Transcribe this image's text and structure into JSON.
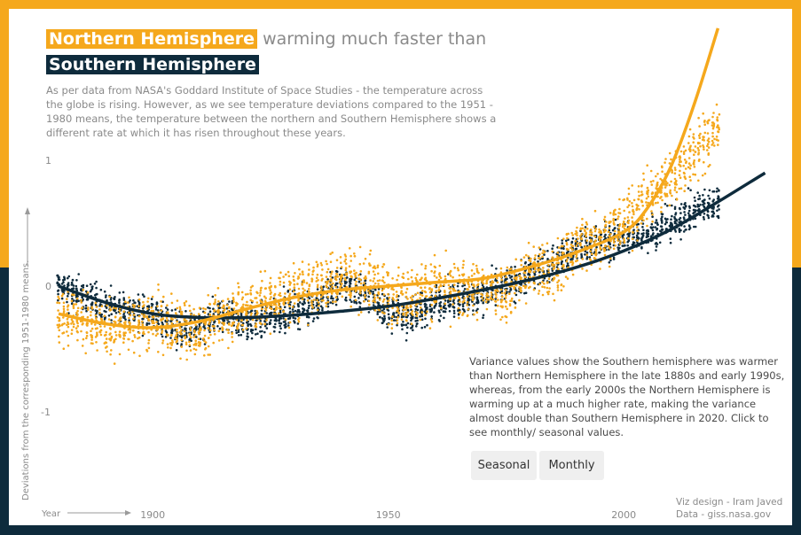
{
  "colors": {
    "north": "#F5A81C",
    "south": "#0E2B3C"
  },
  "title": {
    "north_label": "Northern Hemisphere",
    "rest": "warming much faster than",
    "south_label": "Southern Hemisphere"
  },
  "description": "As per data from NASA's Goddard Institute of Space Studies - the temperature across the globe is rising. However, as we see temperature deviations compared to the 1951 - 1980 means, the temperature between the northern and Southern Hemisphere shows a different rate at which it has risen throughout these years.",
  "annotation": "Variance values show the Southern hemisphere was warmer than Northern Hemisphere in the late 1880s and early 1990s, whereas, from the early 2000s the Northern Hemisphere is warming up at a much higher rate, making the variance almost double than Southern Hemisphere in 2020. Click to see monthly/ seasonal values.",
  "buttons": {
    "seasonal": "Seasonal",
    "monthly": "Monthly"
  },
  "credits": {
    "design": "Viz design - Iram Javed",
    "data": "Data - giss.nasa.gov"
  },
  "chart_data": {
    "type": "scatter",
    "ylabel": "Deviations from the corresponding 1951-1980 means.",
    "xlabel": "Year",
    "x_ticks": [
      "1900",
      "1950",
      "2000"
    ],
    "y_ticks": [
      "1",
      "0",
      "-1"
    ],
    "xlim": [
      1880,
      2020
    ],
    "ylim": [
      -1.7,
      1.95
    ],
    "grid": false,
    "legend": "none",
    "series": [
      {
        "name": "Northern Hemisphere",
        "years": [
          1880,
          1885,
          1890,
          1895,
          1900,
          1905,
          1910,
          1915,
          1920,
          1925,
          1930,
          1935,
          1940,
          1945,
          1950,
          1955,
          1960,
          1965,
          1970,
          1975,
          1980,
          1985,
          1990,
          1995,
          2000,
          2005,
          2010,
          2015,
          2020
        ],
        "means": [
          -0.22,
          -0.26,
          -0.33,
          -0.32,
          -0.28,
          -0.32,
          -0.37,
          -0.22,
          -0.18,
          -0.12,
          -0.05,
          -0.02,
          0.1,
          0.05,
          -0.07,
          -0.08,
          0.0,
          -0.05,
          -0.02,
          -0.05,
          0.12,
          0.1,
          0.33,
          0.38,
          0.5,
          0.7,
          0.85,
          1.05,
          1.25
        ],
        "trend": [
          [
            1880,
            -0.22
          ],
          [
            1890,
            -0.3
          ],
          [
            1900,
            -0.33
          ],
          [
            1910,
            -0.28
          ],
          [
            1920,
            -0.18
          ],
          [
            1930,
            -0.09
          ],
          [
            1940,
            -0.03
          ],
          [
            1950,
            0.0
          ],
          [
            1960,
            0.03
          ],
          [
            1970,
            0.06
          ],
          [
            1980,
            0.15
          ],
          [
            1990,
            0.27
          ],
          [
            2000,
            0.43
          ],
          [
            2005,
            0.62
          ],
          [
            2010,
            0.95
          ],
          [
            2015,
            1.45
          ],
          [
            2020,
            2.05
          ]
        ]
      },
      {
        "name": "Southern Hemisphere",
        "years": [
          1880,
          1885,
          1890,
          1895,
          1900,
          1905,
          1910,
          1915,
          1920,
          1925,
          1930,
          1935,
          1940,
          1945,
          1950,
          1955,
          1960,
          1965,
          1970,
          1975,
          1980,
          1985,
          1990,
          1995,
          2000,
          2005,
          2010,
          2015,
          2020
        ],
        "means": [
          0.0,
          -0.08,
          -0.16,
          -0.2,
          -0.22,
          -0.35,
          -0.35,
          -0.22,
          -0.3,
          -0.25,
          -0.18,
          -0.13,
          0.02,
          -0.05,
          -0.2,
          -0.25,
          -0.12,
          -0.1,
          -0.08,
          0.0,
          0.1,
          0.18,
          0.3,
          0.35,
          0.38,
          0.42,
          0.5,
          0.6,
          0.67
        ],
        "trend": [
          [
            1880,
            0.0
          ],
          [
            1890,
            -0.13
          ],
          [
            1900,
            -0.22
          ],
          [
            1910,
            -0.25
          ],
          [
            1920,
            -0.25
          ],
          [
            1930,
            -0.23
          ],
          [
            1940,
            -0.2
          ],
          [
            1950,
            -0.16
          ],
          [
            1960,
            -0.1
          ],
          [
            1970,
            -0.03
          ],
          [
            1980,
            0.05
          ],
          [
            1990,
            0.15
          ],
          [
            2000,
            0.28
          ],
          [
            2010,
            0.45
          ],
          [
            2020,
            0.67
          ],
          [
            2030,
            0.9
          ]
        ]
      }
    ]
  }
}
